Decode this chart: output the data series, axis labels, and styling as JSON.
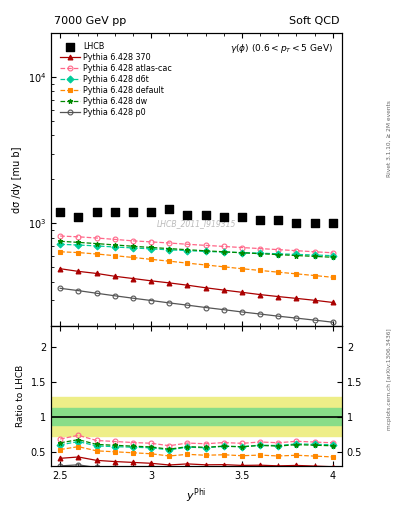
{
  "title_left": "7000 GeV pp",
  "title_right": "Soft QCD",
  "watermark": "LHCB_2011_I919315",
  "ylabel_main": "dσ /dy [mu b]",
  "ylabel_ratio": "Ratio to LHCB",
  "xlabel": "y^{Phi}",
  "rivet_label": "Rivet 3.1.10, ≥ 2M events",
  "mcplots_label": "mcplots.cern.ch [arXiv:1306.3436]",
  "x": [
    2.5,
    2.6,
    2.7,
    2.8,
    2.9,
    3.0,
    3.1,
    3.2,
    3.3,
    3.4,
    3.5,
    3.6,
    3.7,
    3.8,
    3.9,
    4.0
  ],
  "xlim": [
    2.45,
    4.05
  ],
  "ylim_main": [
    200,
    20000
  ],
  "ylim_ratio": [
    0.3,
    2.3
  ],
  "lhcb_y": [
    1200,
    1100,
    1200,
    1200,
    1200,
    1200,
    1250,
    1150,
    1150,
    1100,
    1100,
    1050,
    1050,
    1000,
    1000,
    1000
  ],
  "p370_y": [
    490,
    470,
    455,
    435,
    420,
    405,
    392,
    378,
    363,
    350,
    338,
    326,
    316,
    307,
    298,
    288
  ],
  "p370_color": "#aa0000",
  "p370_label": "Pythia 6.428 370",
  "p370_ls": "-",
  "p370_marker": "^",
  "atlas_y": [
    820,
    810,
    795,
    778,
    760,
    748,
    735,
    720,
    708,
    696,
    684,
    673,
    662,
    651,
    640,
    630
  ],
  "atlas_color": "#ff6688",
  "atlas_label": "Pythia 6.428 atlas-cac",
  "atlas_ls": "--",
  "atlas_marker": "o",
  "d6t_y": [
    720,
    712,
    702,
    690,
    680,
    670,
    660,
    652,
    643,
    637,
    632,
    626,
    620,
    614,
    608,
    602
  ],
  "d6t_color": "#00cc99",
  "d6t_label": "Pythia 6.428 d6t",
  "d6t_ls": "--",
  "d6t_marker": "D",
  "default_y": [
    640,
    632,
    618,
    602,
    585,
    568,
    552,
    535,
    520,
    505,
    490,
    477,
    464,
    452,
    440,
    428
  ],
  "default_color": "#ff8800",
  "default_label": "Pythia 6.428 default",
  "default_ls": "--",
  "default_marker": "s",
  "dw_y": [
    755,
    742,
    728,
    713,
    698,
    685,
    673,
    661,
    650,
    640,
    630,
    621,
    612,
    603,
    595,
    587
  ],
  "dw_color": "#008800",
  "dw_label": "Pythia 6.428 dw",
  "dw_ls": "--",
  "dw_marker": "*",
  "p0_y": [
    360,
    347,
    333,
    320,
    308,
    297,
    286,
    276,
    266,
    257,
    248,
    240,
    232,
    225,
    218,
    211
  ],
  "p0_color": "#555555",
  "p0_label": "Pythia 6.428 p0",
  "p0_ls": "-",
  "p0_marker": "o",
  "band_green_lo": 0.88,
  "band_green_hi": 1.13,
  "band_yellow_lo": 0.72,
  "band_yellow_hi": 1.28
}
